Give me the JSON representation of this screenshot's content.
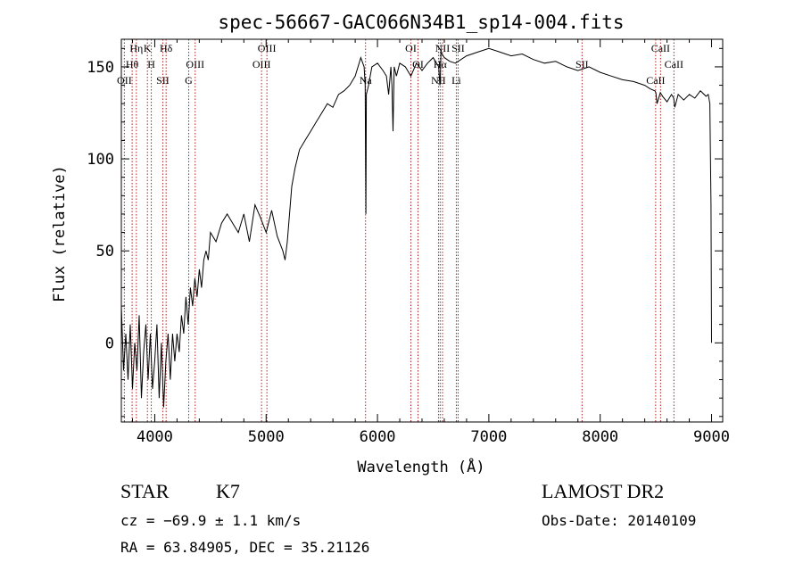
{
  "chart_data": {
    "type": "line",
    "title": "spec-56667-GAC066N34B1_sp14-004.fits",
    "xlabel": "Wavelength (Å)",
    "ylabel": "Flux (relative)",
    "xlim": [
      3700,
      9100
    ],
    "ylim": [
      -43,
      165
    ],
    "xticks": [
      4000,
      5000,
      6000,
      7000,
      8000,
      9000
    ],
    "yticks": [
      0,
      50,
      100,
      150
    ],
    "grid": false,
    "series": [
      {
        "x": [
          3700,
          3720,
          3740,
          3760,
          3780,
          3800,
          3820,
          3840,
          3860,
          3880,
          3900,
          3920,
          3940,
          3960,
          3980,
          4000,
          4020,
          4040,
          4060,
          4080,
          4100,
          4120,
          4140,
          4160,
          4180,
          4200,
          4220,
          4240,
          4260,
          4280,
          4300,
          4320,
          4340,
          4360,
          4380,
          4400,
          4420,
          4440,
          4460,
          4480,
          4500,
          4550,
          4600,
          4650,
          4700,
          4750,
          4800,
          4850,
          4900,
          4950,
          5000,
          5050,
          5100,
          5150,
          5170,
          5190,
          5210,
          5230,
          5260,
          5300,
          5350,
          5400,
          5450,
          5500,
          5550,
          5600,
          5650,
          5700,
          5750,
          5800,
          5850,
          5880,
          5890,
          5893,
          5896,
          5900,
          5920,
          5950,
          6000,
          6050,
          6080,
          6100,
          6120,
          6130,
          6140,
          6150,
          6170,
          6200,
          6250,
          6300,
          6350,
          6400,
          6450,
          6500,
          6550,
          6560,
          6565,
          6570,
          6600,
          6650,
          6700,
          6800,
          6900,
          7000,
          7100,
          7200,
          7300,
          7400,
          7500,
          7600,
          7700,
          7800,
          7900,
          8000,
          8100,
          8200,
          8300,
          8400,
          8450,
          8490,
          8500,
          8510,
          8540,
          8560,
          8600,
          8640,
          8660,
          8670,
          8700,
          8750,
          8800,
          8850,
          8900,
          8950,
          8970,
          8985,
          8990,
          8995,
          9000
        ],
        "y": [
          20,
          -15,
          5,
          -20,
          10,
          -25,
          0,
          -15,
          15,
          -30,
          -5,
          10,
          -20,
          5,
          -25,
          -10,
          10,
          -30,
          0,
          -35,
          -10,
          5,
          -20,
          5,
          -10,
          5,
          -5,
          15,
          5,
          25,
          10,
          30,
          20,
          35,
          25,
          40,
          30,
          45,
          50,
          45,
          60,
          55,
          65,
          70,
          65,
          60,
          70,
          55,
          75,
          68,
          60,
          72,
          58,
          50,
          45,
          55,
          70,
          85,
          95,
          105,
          110,
          115,
          120,
          125,
          130,
          128,
          135,
          137,
          140,
          145,
          155,
          150,
          140,
          100,
          70,
          135,
          140,
          150,
          152,
          148,
          145,
          135,
          150,
          140,
          115,
          150,
          145,
          152,
          150,
          145,
          152,
          148,
          152,
          155,
          150,
          140,
          145,
          158,
          155,
          153,
          152,
          156,
          158,
          160,
          158,
          156,
          157,
          154,
          152,
          153,
          150,
          148,
          150,
          147,
          145,
          143,
          142,
          140,
          138,
          137,
          136,
          130,
          136,
          134,
          131,
          135,
          133,
          128,
          135,
          132,
          135,
          133,
          137,
          134,
          135,
          130,
          100,
          75,
          0
        ]
      }
    ],
    "lines": [
      {
        "label": "Hη",
        "x": 3835
      },
      {
        "label": "Hθ",
        "x": 3797
      },
      {
        "label": "OII",
        "x": 3727
      },
      {
        "label": "K",
        "x": 3934
      },
      {
        "label": "H",
        "x": 3969
      },
      {
        "label": "SII",
        "x": 4072
      },
      {
        "label": "Hδ",
        "x": 4102
      },
      {
        "label": "OIII",
        "x": 4363
      },
      {
        "label": "G",
        "x": 4305
      },
      {
        "label": "OIII",
        "x": 5007
      },
      {
        "label": "OIII",
        "x": 4959
      },
      {
        "label": "Na",
        "x": 5893
      },
      {
        "label": "OI",
        "x": 6300
      },
      {
        "label": "OI",
        "x": 6364
      },
      {
        "label": "NII",
        "x": 6548
      },
      {
        "label": "NII",
        "x": 6584
      },
      {
        "label": "Hα",
        "x": 6563
      },
      {
        "label": "Li",
        "x": 6708
      },
      {
        "label": "SII",
        "x": 6724
      },
      {
        "label": "SII",
        "x": 7837
      },
      {
        "label": "CaII",
        "x": 8498
      },
      {
        "label": "CaII",
        "x": 8542
      },
      {
        "label": "CaII",
        "x": 8662
      }
    ]
  },
  "info": {
    "class": "STAR",
    "subclass": "K7",
    "survey": "LAMOST DR2",
    "cz": "cz = −69.9 ± 1.1 km/s",
    "obs_date": "Obs-Date: 20140109",
    "coords": "RA =  63.84905, DEC =  35.21126"
  }
}
